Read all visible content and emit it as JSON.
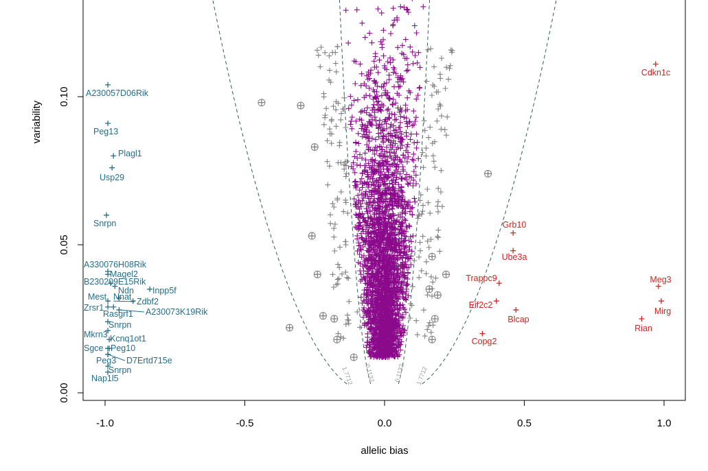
{
  "chart_data": {
    "type": "scatter",
    "title": "",
    "xlabel": "allelic bias",
    "ylabel": "variability",
    "xlim": [
      -1.1,
      1.07
    ],
    "ylim": [
      -0.003,
      0.133
    ],
    "x_ticks": [
      {
        "value": -1.0,
        "label": "-1.0"
      },
      {
        "value": -0.5,
        "label": "-0.5"
      },
      {
        "value": 0.0,
        "label": "0.0"
      },
      {
        "value": 0.5,
        "label": "0.5"
      },
      {
        "value": 1.0,
        "label": "1.0"
      }
    ],
    "y_ticks": [
      {
        "value": 0.0,
        "label": "0.00"
      },
      {
        "value": 0.05,
        "label": "0.05"
      },
      {
        "value": 0.1,
        "label": "0.10"
      }
    ],
    "colors": {
      "maternal": "#1f6e8c",
      "paternal": "#d62020",
      "unbiased": "#8b0a8b",
      "intermediate": "#808080",
      "curve": "#2f5a5a"
    },
    "curve_labels": [
      "1.7712",
      "0.1132",
      "0.1132",
      "1.7712"
    ],
    "series": [
      {
        "name": "",
        "color_key": "maternal",
        "points": [
          {
            "label": "A230057D06Rik",
            "x": -0.99,
            "y": 0.104
          },
          {
            "label": "Peg13",
            "x": -0.99,
            "y": 0.091
          },
          {
            "label": "Plagl1",
            "x": -0.97,
            "y": 0.08
          },
          {
            "label": "Usp29",
            "x": -0.975,
            "y": 0.076
          },
          {
            "label": "Snrpn",
            "x": -0.995,
            "y": 0.06
          },
          {
            "label": "A330076H08Rik",
            "x": -0.99,
            "y": 0.041
          },
          {
            "label": "Magel2",
            "x": -0.99,
            "y": 0.04
          },
          {
            "label": "B230209E15Rik",
            "x": -0.98,
            "y": 0.037
          },
          {
            "label": "Ndn",
            "x": -0.965,
            "y": 0.036
          },
          {
            "label": "Inpp5f",
            "x": -0.84,
            "y": 0.035
          },
          {
            "label": "Nnat",
            "x": -0.95,
            "y": 0.032
          },
          {
            "label": "Mest",
            "x": -0.99,
            "y": 0.031
          },
          {
            "label": "Zdbf2",
            "x": -0.9,
            "y": 0.031
          },
          {
            "label": "Zrsr1",
            "x": -0.99,
            "y": 0.029
          },
          {
            "label": "Rasgrf1",
            "x": -0.97,
            "y": 0.029
          },
          {
            "label": "A230073K19Rik",
            "x": -0.95,
            "y": 0.028
          },
          {
            "label": "Snrpn",
            "x": -0.99,
            "y": 0.024
          },
          {
            "label": "Mkrn3",
            "x": -0.99,
            "y": 0.021
          },
          {
            "label": "Kcnq1ot1",
            "x": -0.985,
            "y": 0.018
          },
          {
            "label": "Sgce",
            "x": -0.99,
            "y": 0.015
          },
          {
            "label": "Peg10",
            "x": -0.985,
            "y": 0.015
          },
          {
            "label": "Peg3",
            "x": -0.99,
            "y": 0.013
          },
          {
            "label": "D7Ertd715e",
            "x": -0.99,
            "y": 0.013
          },
          {
            "label": "Snrpn",
            "x": -0.99,
            "y": 0.009
          },
          {
            "label": "Nap1l5",
            "x": -0.99,
            "y": 0.007
          }
        ]
      },
      {
        "name": "",
        "color_key": "paternal",
        "points": [
          {
            "label": "Cdkn1c",
            "x": 0.97,
            "y": 0.111
          },
          {
            "label": "Grb10",
            "x": 0.46,
            "y": 0.054
          },
          {
            "label": "Ube3a",
            "x": 0.46,
            "y": 0.048
          },
          {
            "label": "Meg3",
            "x": 0.98,
            "y": 0.036
          },
          {
            "label": "Trappc9",
            "x": 0.41,
            "y": 0.037
          },
          {
            "label": "Eif2c2",
            "x": 0.4,
            "y": 0.031
          },
          {
            "label": "Mirg",
            "x": 0.99,
            "y": 0.031
          },
          {
            "label": "Blcap",
            "x": 0.47,
            "y": 0.028
          },
          {
            "label": "Rian",
            "x": 0.92,
            "y": 0.025
          },
          {
            "label": "Copg2",
            "x": 0.35,
            "y": 0.02
          }
        ]
      },
      {
        "name": "",
        "color_key": "intermediate",
        "circled": true,
        "points": [
          {
            "x": -0.44,
            "y": 0.098
          },
          {
            "x": -0.3,
            "y": 0.097
          },
          {
            "x": -0.25,
            "y": 0.083
          },
          {
            "x": 0.37,
            "y": 0.074
          },
          {
            "x": -0.34,
            "y": 0.022
          },
          {
            "x": -0.22,
            "y": 0.026
          },
          {
            "x": -0.18,
            "y": 0.025
          },
          {
            "x": -0.17,
            "y": 0.018
          },
          {
            "x": -0.11,
            "y": 0.012
          },
          {
            "x": 0.17,
            "y": 0.018
          },
          {
            "x": 0.18,
            "y": 0.025
          },
          {
            "x": 0.19,
            "y": 0.033
          },
          {
            "x": 0.22,
            "y": 0.04
          },
          {
            "x": 0.16,
            "y": 0.035
          },
          {
            "x": -0.24,
            "y": 0.04
          },
          {
            "x": -0.26,
            "y": 0.053
          },
          {
            "x": 0.17,
            "y": 0.046
          }
        ]
      }
    ]
  }
}
